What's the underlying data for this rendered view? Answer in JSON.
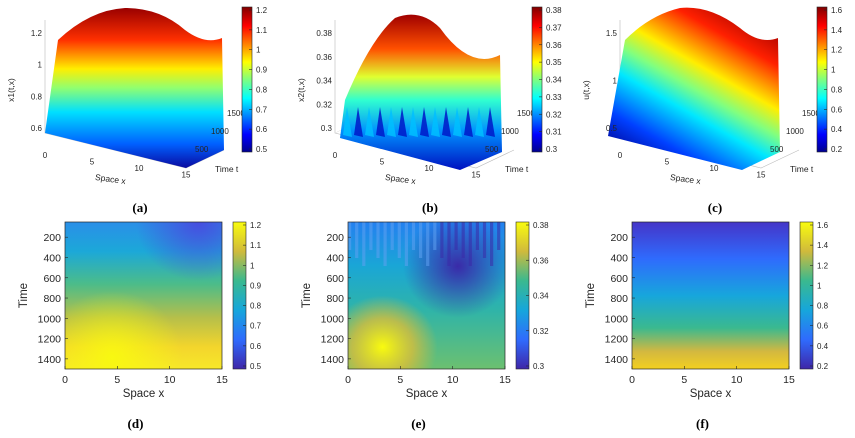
{
  "panels": [
    {
      "id": "a",
      "caption": "(a)",
      "kind": "surface",
      "zlabel": "x1(t,x)",
      "xlabel": "Space x",
      "ylabel": "Time t",
      "xticks": [
        "0",
        "5",
        "10",
        "15"
      ],
      "tticks": [
        "500",
        "1000",
        "1500"
      ],
      "zticks": [
        "0.6",
        "0.8",
        "1",
        "1.2"
      ],
      "cbar_ticks": [
        "1.2",
        "1.1",
        "1",
        "0.9",
        "0.8",
        "0.7",
        "0.6",
        "0.5"
      ]
    },
    {
      "id": "b",
      "caption": "(b)",
      "kind": "surface",
      "zlabel": "x2(t,x)",
      "xlabel": "Space x",
      "ylabel": "Time t",
      "xticks": [
        "0",
        "5",
        "10",
        "15"
      ],
      "tticks": [
        "500",
        "1000",
        "1500"
      ],
      "zticks": [
        "0.3",
        "0.32",
        "0.34",
        "0.36",
        "0.38"
      ],
      "cbar_ticks": [
        "0.38",
        "0.37",
        "0.36",
        "0.35",
        "0.34",
        "0.33",
        "0.32",
        "0.31",
        "0.3"
      ]
    },
    {
      "id": "c",
      "caption": "(c)",
      "kind": "surface",
      "zlabel": "u(t,x)",
      "xlabel": "Space x",
      "ylabel": "Time t",
      "xticks": [
        "0",
        "5",
        "10",
        "15"
      ],
      "tticks": [
        "500",
        "1000",
        "1500"
      ],
      "zticks": [
        "0.5",
        "1",
        "1.5"
      ],
      "cbar_ticks": [
        "1.6",
        "1.4",
        "1.2",
        "1",
        "0.8",
        "0.6",
        "0.4",
        "0.2"
      ]
    },
    {
      "id": "d",
      "caption": "(d)",
      "kind": "heatmap",
      "xlabel": "Space x",
      "ylabel": "Time",
      "xticks": [
        "0",
        "5",
        "10",
        "15"
      ],
      "yticks": [
        "200",
        "400",
        "600",
        "800",
        "1000",
        "1200",
        "1400"
      ],
      "cbar_ticks": [
        "1.2",
        "1.1",
        "1",
        "0.9",
        "0.8",
        "0.7",
        "0.6",
        "0.5"
      ]
    },
    {
      "id": "e",
      "caption": "(e)",
      "kind": "heatmap",
      "xlabel": "Space x",
      "ylabel": "Time",
      "xticks": [
        "0",
        "5",
        "10",
        "15"
      ],
      "yticks": [
        "200",
        "400",
        "600",
        "800",
        "1000",
        "1200",
        "1400"
      ],
      "cbar_ticks": [
        "0.38",
        "0.36",
        "0.34",
        "0.32",
        "0.3"
      ]
    },
    {
      "id": "f",
      "caption": "(f)",
      "kind": "heatmap",
      "xlabel": "Space x",
      "ylabel": "Time",
      "xticks": [
        "0",
        "5",
        "10",
        "15"
      ],
      "yticks": [
        "200",
        "400",
        "600",
        "800",
        "1000",
        "1200",
        "1400"
      ],
      "cbar_ticks": [
        "1.6",
        "1.4",
        "1.2",
        "1",
        "0.8",
        "0.6",
        "0.4",
        "0.2"
      ]
    }
  ],
  "chart_data": [
    {
      "type": "surface",
      "title": "(a)",
      "xlabel": "Space x",
      "ylabel": "Time t",
      "zlabel": "x1(t,x)",
      "xlim": [
        0,
        15
      ],
      "ylim": [
        0,
        1500
      ],
      "zlim": [
        0.45,
        1.25
      ],
      "colormap": "jet",
      "x": [
        0,
        2.5,
        5,
        7.5,
        10,
        12.5,
        15
      ],
      "t": [
        0,
        500,
        1000,
        1500
      ],
      "z": [
        [
          0.55,
          0.47,
          0.5,
          0.6,
          0.62,
          0.56,
          0.53
        ],
        [
          0.8,
          0.74,
          0.76,
          0.86,
          0.88,
          0.82,
          0.8
        ],
        [
          1.05,
          1.0,
          1.02,
          1.1,
          1.12,
          1.07,
          1.05
        ],
        [
          1.22,
          1.25,
          1.2,
          1.12,
          1.1,
          1.15,
          1.2
        ]
      ]
    },
    {
      "type": "surface",
      "title": "(b)",
      "xlabel": "Space x",
      "ylabel": "Time t",
      "zlabel": "x2(t,x)",
      "xlim": [
        0,
        15
      ],
      "ylim": [
        0,
        1500
      ],
      "zlim": [
        0.3,
        0.38
      ],
      "colormap": "jet",
      "x": [
        0,
        2.5,
        5,
        7.5,
        10,
        12.5,
        15
      ],
      "t": [
        0,
        500,
        1000,
        1500
      ],
      "z": [
        [
          0.33,
          0.32,
          0.34,
          0.33,
          0.31,
          0.32,
          0.33
        ],
        [
          0.35,
          0.36,
          0.35,
          0.33,
          0.31,
          0.32,
          0.34
        ],
        [
          0.37,
          0.38,
          0.37,
          0.35,
          0.32,
          0.33,
          0.35
        ],
        [
          0.37,
          0.385,
          0.38,
          0.36,
          0.34,
          0.35,
          0.36
        ]
      ]
    },
    {
      "type": "surface",
      "title": "(c)",
      "xlabel": "Space x",
      "ylabel": "Time t",
      "zlabel": "u(t,x)",
      "xlim": [
        0,
        15
      ],
      "ylim": [
        0,
        1500
      ],
      "zlim": [
        0.2,
        1.6
      ],
      "colormap": "jet",
      "x": [
        0,
        2.5,
        5,
        7.5,
        10,
        12.5,
        15
      ],
      "t": [
        0,
        500,
        1000,
        1500
      ],
      "z": [
        [
          0.25,
          0.22,
          0.23,
          0.26,
          0.27,
          0.24,
          0.23
        ],
        [
          0.8,
          0.76,
          0.78,
          0.84,
          0.85,
          0.8,
          0.78
        ],
        [
          1.25,
          1.22,
          1.24,
          1.3,
          1.3,
          1.26,
          1.25
        ],
        [
          1.55,
          1.6,
          1.55,
          1.45,
          1.42,
          1.48,
          1.55
        ]
      ]
    },
    {
      "type": "heatmap",
      "title": "(d)",
      "xlabel": "Space x",
      "ylabel": "Time",
      "xlim": [
        0,
        15
      ],
      "ylim": [
        50,
        1500
      ],
      "clim": [
        0.45,
        1.25
      ],
      "colormap": "parula"
    },
    {
      "type": "heatmap",
      "title": "(e)",
      "xlabel": "Space x",
      "ylabel": "Time",
      "xlim": [
        0,
        15
      ],
      "ylim": [
        50,
        1500
      ],
      "clim": [
        0.3,
        0.385
      ],
      "colormap": "parula"
    },
    {
      "type": "heatmap",
      "title": "(f)",
      "xlabel": "Space x",
      "ylabel": "Time",
      "xlim": [
        0,
        15
      ],
      "ylim": [
        50,
        1500
      ],
      "clim": [
        0.2,
        1.6
      ],
      "colormap": "parula"
    }
  ]
}
